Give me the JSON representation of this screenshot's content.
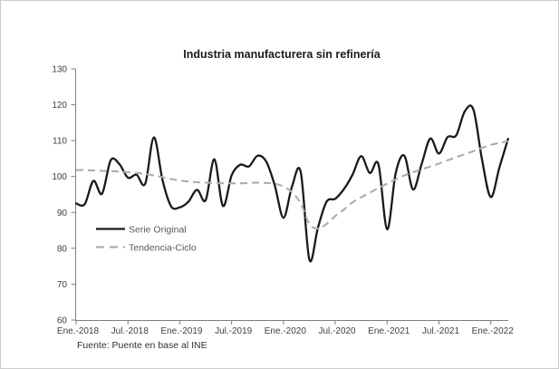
{
  "chart_data": {
    "type": "line",
    "title": "Industria manufacturera sin refinería",
    "source": "Fuente: Puente en base al INE",
    "x_unit": "month",
    "x_start_label": "Ene.-2018",
    "x_end_label": "Ene.-2022",
    "x_tick_labels": [
      "Ene.-2018",
      "Jul.-2018",
      "Ene.-2019",
      "Jul.-2019",
      "Ene.-2020",
      "Jul.-2020",
      "Ene.-2021",
      "Jul.-2021",
      "Ene.-2022"
    ],
    "y_ticks": [
      60,
      70,
      80,
      90,
      100,
      110,
      120,
      130
    ],
    "ylim": [
      60,
      130
    ],
    "grid": false,
    "legend_position": "inside-left",
    "series": [
      {
        "name": "Serie Original",
        "style": "solid",
        "color": "#1a1a1a",
        "months": "Ene-2018 a Mar-2022, mensual",
        "values": [
          92.5,
          92.3,
          98.8,
          95.2,
          104.5,
          103.5,
          99.7,
          100.5,
          98.0,
          110.9,
          99.0,
          91.7,
          91.4,
          93.0,
          96.3,
          93.4,
          104.8,
          91.8,
          100.3,
          103.3,
          102.8,
          105.8,
          104.2,
          97.5,
          88.5,
          97.3,
          101.3,
          76.8,
          85.8,
          93.0,
          93.8,
          96.5,
          100.5,
          105.7,
          101.0,
          103.4,
          85.3,
          101.0,
          105.8,
          96.4,
          103.5,
          110.6,
          106.4,
          111.0,
          111.5,
          118.2,
          118.6,
          104.5,
          94.3,
          102.5,
          110.5
        ]
      },
      {
        "name": "Tendencia-Ciclo",
        "style": "dashed",
        "color": "#adadad",
        "months": "Ene-2018 a Mar-2022, mensual",
        "values": [
          101.8,
          101.8,
          101.7,
          101.6,
          101.5,
          101.4,
          101.2,
          101.0,
          100.7,
          100.3,
          99.8,
          99.3,
          98.9,
          98.6,
          98.4,
          98.3,
          98.2,
          98.1,
          98.1,
          98.1,
          98.2,
          98.3,
          98.2,
          98.0,
          97.2,
          95.6,
          92.5,
          86.8,
          85.5,
          86.8,
          89.0,
          90.8,
          92.8,
          94.2,
          95.5,
          96.8,
          98.0,
          99.2,
          100.3,
          101.2,
          102.0,
          102.8,
          103.6,
          104.5,
          105.4,
          106.2,
          107.1,
          108.0,
          108.8,
          109.4,
          109.8
        ]
      }
    ]
  }
}
